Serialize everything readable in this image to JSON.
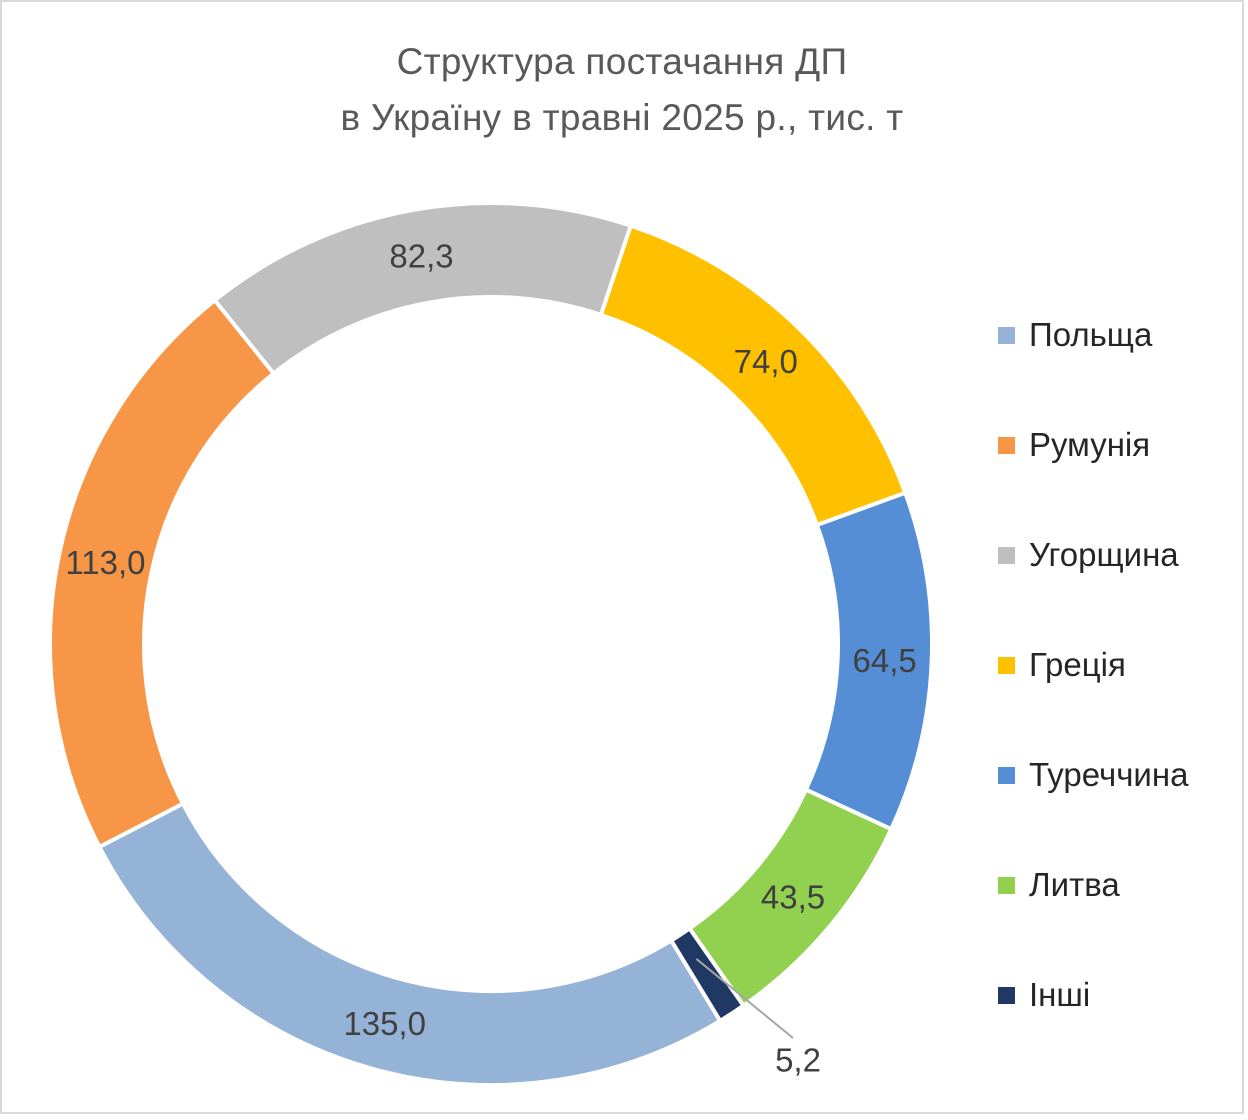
{
  "chart_data": {
    "type": "pie",
    "variant": "doughnut",
    "title": "Структура постачання ДП в Україну в травні 2025 р., тис. т",
    "title_lines": [
      "Структура постачання ДП",
      "в Україну в травні 2025 р., тис. т"
    ],
    "legend_position": "right",
    "series": [
      {
        "categories": [
          "Польща",
          "Румунія",
          "Угорщина",
          "Греція",
          "Туреччина",
          "Литва",
          "Інші"
        ],
        "values": [
          135.0,
          113.0,
          82.3,
          74.0,
          64.5,
          43.5,
          5.2
        ],
        "labels": [
          "135,0",
          "113,0",
          "82,3",
          "74,0",
          "64,5",
          "43,5",
          "5,2"
        ],
        "colors": [
          "#95b3d7",
          "#f79646",
          "#bfbfbf",
          "#ffc000",
          "#558ed5",
          "#92d050",
          "#1f3864"
        ]
      }
    ]
  }
}
